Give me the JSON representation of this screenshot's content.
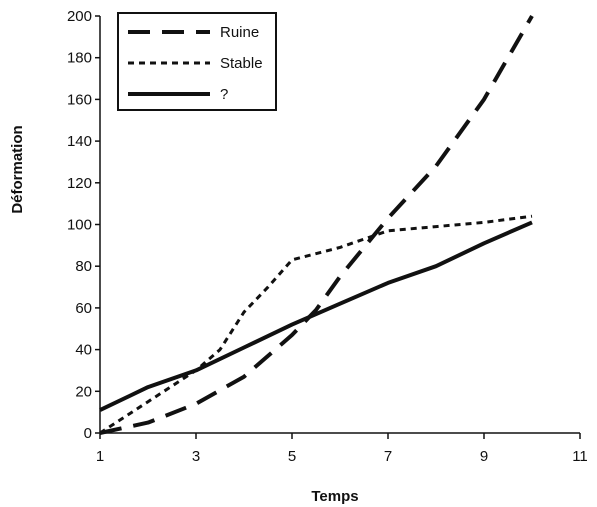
{
  "chart_data": {
    "type": "line",
    "xlabel": "Temps",
    "ylabel": "Déformation",
    "xlim": [
      1,
      11
    ],
    "ylim": [
      0,
      200
    ],
    "xticks": [
      "1",
      "3",
      "5",
      "7",
      "9",
      "11"
    ],
    "yticks": [
      "0",
      "20",
      "40",
      "60",
      "80",
      "100",
      "120",
      "140",
      "160",
      "180",
      "200"
    ],
    "legend_position": "top-left",
    "grid": false,
    "series": [
      {
        "name": "Ruine",
        "style": "long-dash",
        "x": [
          1,
          2,
          3,
          4,
          5,
          5.5,
          6,
          7,
          8,
          9,
          10
        ],
        "y": [
          0,
          5,
          14,
          27,
          47,
          59,
          75,
          103,
          128,
          160,
          200
        ]
      },
      {
        "name": "Stable",
        "style": "short-dash",
        "x": [
          1,
          2,
          3,
          3.5,
          4,
          4.5,
          5,
          6,
          7,
          8,
          9,
          10
        ],
        "y": [
          0,
          15,
          30,
          40,
          58,
          70,
          83,
          89,
          97,
          99,
          101,
          104
        ]
      },
      {
        "name": "?",
        "style": "solid",
        "x": [
          1,
          2,
          3,
          4,
          5,
          6,
          7,
          8,
          9,
          10
        ],
        "y": [
          11,
          22,
          30,
          41,
          52,
          62,
          72,
          80,
          91,
          101
        ]
      }
    ]
  }
}
